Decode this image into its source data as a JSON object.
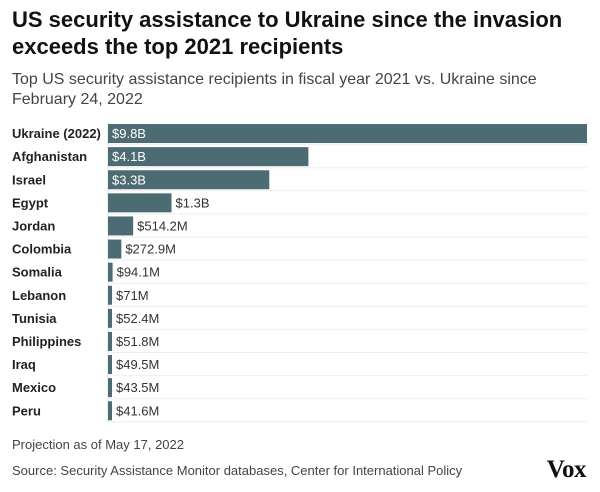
{
  "header": {
    "title": "US security assistance to Ukraine since the invasion exceeds the top 2021 recipients",
    "subtitle": "Top US security assistance recipients in fiscal year 2021 vs. Ukraine since February 24, 2022"
  },
  "chart_data": {
    "type": "bar",
    "orientation": "horizontal",
    "categories": [
      "Ukraine (2022)",
      "Afghanistan",
      "Israel",
      "Egypt",
      "Jordan",
      "Colombia",
      "Somalia",
      "Lebanon",
      "Tunisia",
      "Philippines",
      "Iraq",
      "Mexico",
      "Peru"
    ],
    "values": [
      9800,
      4100,
      3300,
      1300,
      514.2,
      272.9,
      94.1,
      71,
      52.4,
      51.8,
      49.5,
      43.5,
      41.6
    ],
    "value_unit": "millions of US dollars",
    "data_labels": [
      "$9.8B",
      "$4.1B",
      "$3.3B",
      "$1.3B",
      "$514.2M",
      "$272.9M",
      "$94.1M",
      "$71M",
      "$52.4M",
      "$51.8M",
      "$49.5M",
      "$43.5M",
      "$41.6M"
    ],
    "xlim": [
      0,
      9800
    ],
    "bar_color": "#4d6b73",
    "grid": false
  },
  "footer": {
    "note": "Projection as of May 17, 2022",
    "source": "Source: Security Assistance Monitor databases, Center for International Policy",
    "logo": "Vox"
  }
}
